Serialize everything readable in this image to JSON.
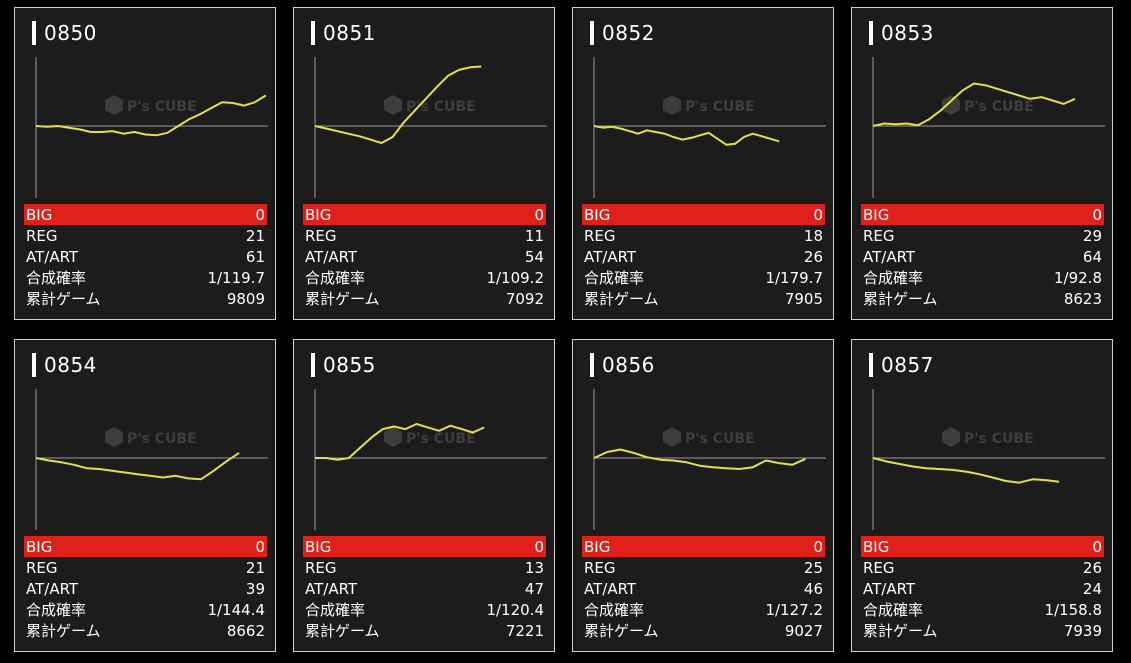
{
  "labels": {
    "big": "BIG",
    "reg": "REG",
    "atart": "AT/ART",
    "combined": "合成確率",
    "games": "累計ゲーム"
  },
  "watermark": {
    "brand": "P's CUBE"
  },
  "colors": {
    "line": "#e5df4a",
    "big_bg": "#e0201b",
    "card_bg": "#1c1c1c"
  },
  "machines": [
    {
      "id": "0850",
      "big": "0",
      "reg": "21",
      "atart": "61",
      "combined": "1/119.7",
      "games": "9809",
      "series": [
        0,
        -0.1,
        0,
        -0.2,
        -0.4,
        -0.7,
        -0.7,
        -0.6,
        -0.9,
        -0.7,
        -1.0,
        -1.1,
        -0.8,
        0,
        0.8,
        1.4,
        2.1,
        2.8,
        2.7,
        2.4,
        2.8,
        3.6
      ]
    },
    {
      "id": "0851",
      "big": "0",
      "reg": "11",
      "atart": "54",
      "combined": "1/109.2",
      "games": "7092",
      "series": [
        0,
        -0.3,
        -0.6,
        -0.9,
        -1.2,
        -1.6,
        -2.0,
        -1.3,
        0.4,
        1.8,
        3.2,
        4.6,
        5.9,
        6.6,
        6.9,
        7.0
      ]
    },
    {
      "id": "0852",
      "big": "0",
      "reg": "18",
      "atart": "26",
      "combined": "1/179.7",
      "games": "7905",
      "series": [
        0,
        -0.2,
        -0.1,
        -0.3,
        -0.6,
        -0.9,
        -0.5,
        -0.7,
        -0.9,
        -1.3,
        -1.6,
        -1.4,
        -1.1,
        -0.8,
        -1.5,
        -2.2,
        -2.1,
        -1.3,
        -0.9,
        -1.2,
        -1.5,
        -1.8
      ]
    },
    {
      "id": "0853",
      "big": "0",
      "reg": "29",
      "atart": "64",
      "combined": "1/92.8",
      "games": "8623",
      "series": [
        0,
        0.3,
        0.2,
        0.3,
        0.1,
        0.8,
        1.8,
        3.0,
        4.2,
        5.0,
        4.8,
        4.4,
        4.0,
        3.6,
        3.2,
        3.4,
        3.0,
        2.6,
        3.2
      ]
    },
    {
      "id": "0854",
      "big": "0",
      "reg": "21",
      "atart": "39",
      "combined": "1/144.4",
      "games": "8662",
      "series": [
        0,
        -0.3,
        -0.5,
        -0.8,
        -1.2,
        -1.3,
        -1.5,
        -1.7,
        -1.9,
        -2.1,
        -2.3,
        -2.1,
        -2.4,
        -2.5,
        -1.5,
        -0.4,
        0.6
      ]
    },
    {
      "id": "0855",
      "big": "0",
      "reg": "13",
      "atart": "47",
      "combined": "1/120.4",
      "games": "7221",
      "series": [
        0,
        0,
        -0.2,
        0,
        1.2,
        2.4,
        3.4,
        3.7,
        3.4,
        4.0,
        3.6,
        3.2,
        3.8,
        3.4,
        3.0,
        3.6
      ]
    },
    {
      "id": "0856",
      "big": "0",
      "reg": "25",
      "atart": "46",
      "combined": "1/127.2",
      "games": "9027",
      "series": [
        0,
        0.7,
        1.0,
        0.6,
        0.1,
        -0.2,
        -0.3,
        -0.5,
        -0.9,
        -1.1,
        -1.2,
        -1.3,
        -1.1,
        -0.3,
        -0.6,
        -0.8,
        -0.1
      ]
    },
    {
      "id": "0857",
      "big": "0",
      "reg": "26",
      "atart": "24",
      "combined": "1/158.8",
      "games": "7939",
      "series": [
        0,
        -0.4,
        -0.7,
        -1.0,
        -1.2,
        -1.3,
        -1.4,
        -1.6,
        -1.9,
        -2.3,
        -2.7,
        -2.9,
        -2.5,
        -2.6,
        -2.8
      ]
    }
  ]
}
